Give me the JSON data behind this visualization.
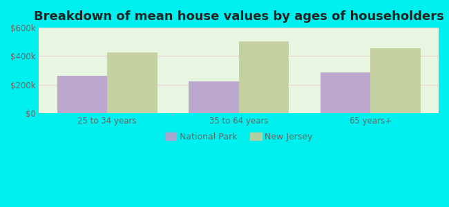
{
  "title": "Breakdown of mean house values by ages of householders",
  "categories": [
    "25 to 34 years",
    "35 to 64 years",
    "65 years+"
  ],
  "national_park_values": [
    260000,
    225000,
    285000
  ],
  "new_jersey_values": [
    425000,
    505000,
    455000
  ],
  "national_park_color": "#b89fcc",
  "new_jersey_color": "#c2ce9a",
  "ylim": [
    0,
    600000
  ],
  "yticks": [
    0,
    200000,
    400000,
    600000
  ],
  "ytick_labels": [
    "$0",
    "$200k",
    "$400k",
    "$600k"
  ],
  "outer_bg_color": "#00efef",
  "plot_bg_color": "#e8f5e0",
  "title_fontsize": 13,
  "legend_labels": [
    "National Park",
    "New Jersey"
  ],
  "bar_width": 0.38,
  "tick_color": "#666666",
  "grid_color": "#dddddd"
}
